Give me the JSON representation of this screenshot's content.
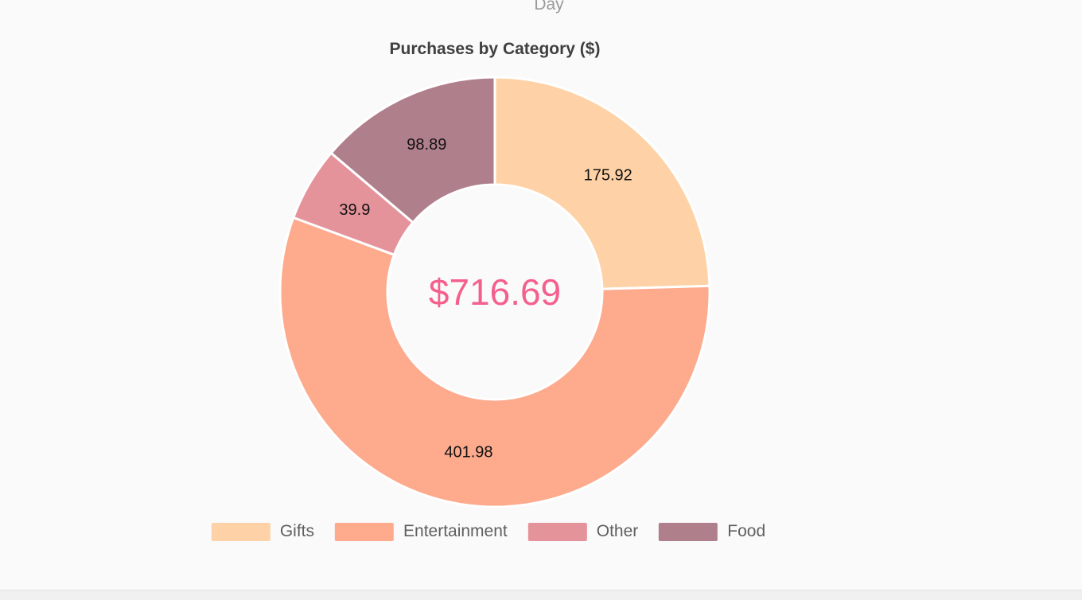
{
  "page": {
    "background": "#fafafa",
    "top_label": "Day"
  },
  "chart": {
    "title": "Purchases by Category ($)",
    "center_total": "$716.69",
    "center_total_color": "#f4608d"
  },
  "chart_data": {
    "type": "pie",
    "variant": "donut",
    "title": "Purchases by Category ($)",
    "categories": [
      "Gifts",
      "Entertainment",
      "Other",
      "Food"
    ],
    "values": [
      175.92,
      401.98,
      39.9,
      98.89
    ],
    "labels": [
      "175.92",
      "401.98",
      "39.9",
      "98.89"
    ],
    "colors": [
      "#fed2a6",
      "#fdaa8d",
      "#e5939b",
      "#b07f8c"
    ],
    "total": 716.69,
    "center_text": "$716.69",
    "start_angle_deg": 0,
    "direction": "clockwise",
    "inner_radius_ratio": 0.5,
    "legend_position": "bottom"
  }
}
